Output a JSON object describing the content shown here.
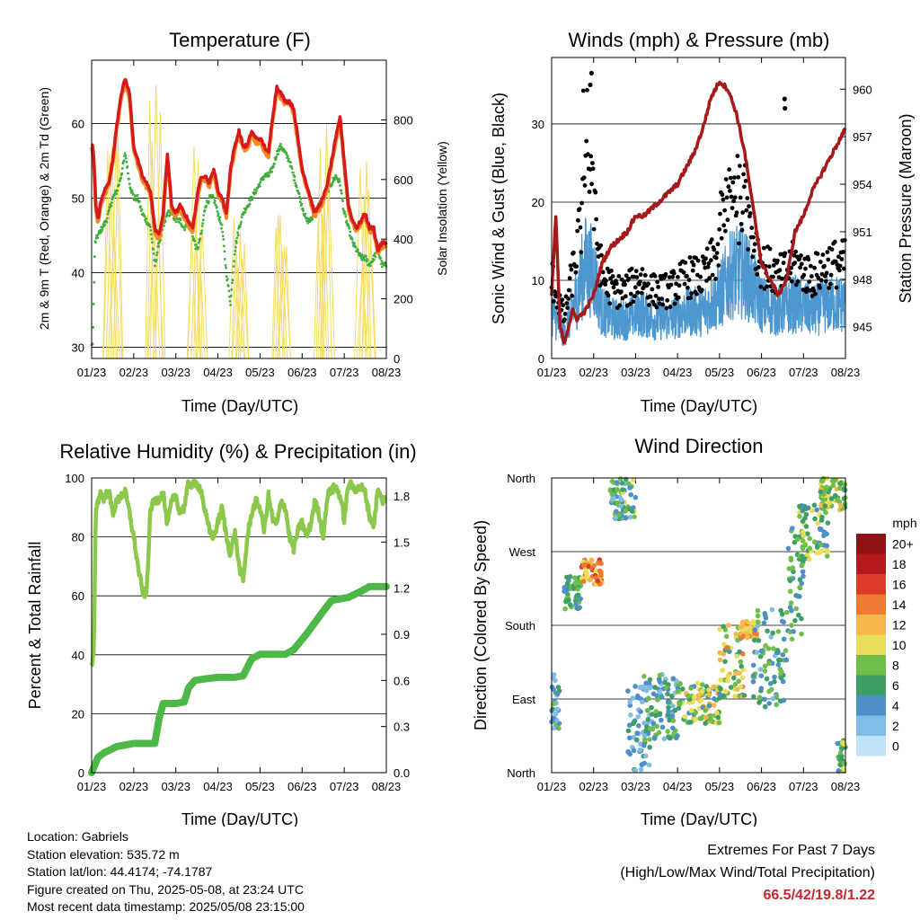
{
  "footer": {
    "location": "Location: Gabriels",
    "elevation": "Station elevation: 535.72 m",
    "latlon": "Station lat/lon: 44.4174; -74.1787",
    "created": "Figure created on Thu, 2025-05-08, at 23:24 UTC",
    "recent": "Most recent data timestamp: 2025/05/08 23:15:00",
    "extremes_title": "Extremes For Past 7 Days",
    "extremes_sub": "(High/Low/Max Wind/Total Precipitation)",
    "extremes_values": "66.5/42/19.8/1.22"
  },
  "colors": {
    "temp2m": "#d7191c",
    "temp9m": "#f08a24",
    "dewpoint": "#3fae3a",
    "solar": "#f6dc60",
    "wind": "#4d97d1",
    "gust": "#000000",
    "pressure": "#a5191b",
    "rh": "#8cc84b",
    "precip": "#4db848",
    "extremes": "#c8262b"
  },
  "chart_data": [
    {
      "type": "line",
      "title": "Temperature (F)",
      "xlabel": "Time (Day/UTC)",
      "ylabel": "2m & 9m T (Red, Orange) & 2m Td (Green)",
      "y2label": "Solar Insolation (Yellow)",
      "x_ticks": [
        "01/23",
        "02/23",
        "03/23",
        "04/23",
        "05/23",
        "06/23",
        "07/23",
        "08/23"
      ],
      "xlim": [
        0,
        7
      ],
      "ylim": [
        28.5,
        68.5
      ],
      "yticks": [
        30,
        40,
        50,
        60
      ],
      "y2lim": [
        0,
        1000
      ],
      "y2ticks": [
        0,
        200,
        400,
        600,
        800
      ],
      "grid": "horizontal",
      "series": [
        {
          "x": [
            0,
            0.05,
            0.1,
            0.15,
            0.2,
            0.3,
            0.4,
            0.5,
            0.6,
            0.7,
            0.8,
            0.9,
            1.0,
            1.1,
            1.2,
            1.3,
            1.4,
            1.5,
            1.6,
            1.7,
            1.8,
            1.9,
            2.0,
            2.1,
            2.2,
            2.3,
            2.4,
            2.5,
            2.6,
            2.7,
            2.8,
            2.9,
            3.0,
            3.1,
            3.2,
            3.3,
            3.4,
            3.5,
            3.6,
            3.7,
            3.8,
            3.9,
            4.0,
            4.1,
            4.2,
            4.3,
            4.4,
            4.5,
            4.6,
            4.7,
            4.8,
            4.9,
            5.0,
            5.1,
            5.2,
            5.3,
            5.4,
            5.5,
            5.6,
            5.7,
            5.8,
            5.9,
            6.0,
            6.1,
            6.2,
            6.3,
            6.4,
            6.5,
            6.6,
            6.7,
            6.8,
            6.9,
            7.0
          ],
          "y": [
            57.5,
            56,
            49,
            47,
            49,
            51,
            52,
            55,
            60,
            64,
            66,
            64,
            57,
            55,
            53,
            52,
            51,
            46,
            45,
            48,
            56,
            49,
            48,
            49,
            48,
            47,
            46,
            50,
            53,
            53,
            52,
            54,
            51,
            50,
            48,
            54,
            57,
            59,
            57,
            57,
            59,
            58,
            58,
            57,
            56,
            61,
            65,
            64,
            63,
            63,
            62,
            58,
            54,
            52,
            50,
            48,
            49,
            50,
            52,
            55,
            58,
            61,
            55,
            49,
            47,
            46,
            47,
            48,
            46,
            46,
            43,
            44,
            44
          ]
        },
        {
          "x": [
            0,
            0.05,
            0.1,
            0.15,
            0.2,
            0.3,
            0.4,
            0.5,
            0.6,
            0.7,
            0.8,
            0.9,
            1.0,
            1.1,
            1.2,
            1.3,
            1.4,
            1.5,
            1.6,
            1.7,
            1.8,
            1.9,
            2.0,
            2.1,
            2.2,
            2.3,
            2.4,
            2.5,
            2.6,
            2.7,
            2.8,
            2.9,
            3.0,
            3.1,
            3.2,
            3.3,
            3.4,
            3.5,
            3.6,
            3.7,
            3.8,
            3.9,
            4.0,
            4.1,
            4.2,
            4.3,
            4.4,
            4.5,
            4.6,
            4.7,
            4.8,
            4.9,
            5.0,
            5.1,
            5.2,
            5.3,
            5.4,
            5.5,
            5.6,
            5.7,
            5.8,
            5.9,
            6.0,
            6.1,
            6.2,
            6.3,
            6.4,
            6.5,
            6.6,
            6.7,
            6.8,
            6.9,
            7.0
          ],
          "y": [
            57,
            55.5,
            48.5,
            46.5,
            48.5,
            50.5,
            51.5,
            54.5,
            59.5,
            63.5,
            65.5,
            63.5,
            56.5,
            54.5,
            52.5,
            51.5,
            50.5,
            45.5,
            44.5,
            47.5,
            55.5,
            48.5,
            47.5,
            48.5,
            47.5,
            46.5,
            45.5,
            49.5,
            52.5,
            52.5,
            51.5,
            53.5,
            50.5,
            49.5,
            47.5,
            53.5,
            56.5,
            58.5,
            56.5,
            56.5,
            58.5,
            57.5,
            57.5,
            56.5,
            55.5,
            60.5,
            64.5,
            63.5,
            62.5,
            62.5,
            61.5,
            57.5,
            53.5,
            51.5,
            49.5,
            47.5,
            48.5,
            49.5,
            51.5,
            54.5,
            57.5,
            60.5,
            54.5,
            48.5,
            46.5,
            45.5,
            46.5,
            47.5,
            45.5,
            45.5,
            42.5,
            43.5,
            43.5
          ]
        },
        {
          "x": [
            0,
            0.03,
            0.08,
            0.15,
            0.25,
            0.35,
            0.5,
            0.6,
            0.7,
            0.8,
            0.9,
            1.0,
            1.1,
            1.2,
            1.3,
            1.4,
            1.5,
            1.6,
            1.7,
            1.8,
            1.9,
            2.0,
            2.1,
            2.2,
            2.3,
            2.4,
            2.5,
            2.6,
            2.7,
            2.8,
            2.9,
            3.0,
            3.1,
            3.2,
            3.3,
            3.4,
            3.5,
            3.6,
            3.7,
            3.8,
            3.9,
            4.0,
            4.1,
            4.2,
            4.3,
            4.4,
            4.5,
            4.6,
            4.7,
            4.8,
            4.9,
            5.0,
            5.1,
            5.2,
            5.3,
            5.4,
            5.5,
            5.6,
            5.7,
            5.8,
            5.9,
            6.0,
            6.1,
            6.2,
            6.3,
            6.4,
            6.5,
            6.6,
            6.7,
            6.8,
            6.9,
            7.0
          ],
          "y": [
            30,
            31,
            44,
            45,
            46,
            47,
            50,
            51,
            53,
            56,
            52,
            50,
            50,
            48,
            47,
            46,
            41,
            44,
            46,
            48,
            48,
            47,
            47,
            46,
            47,
            45,
            43,
            45,
            49,
            50,
            50,
            48,
            46,
            40,
            36,
            43,
            46,
            48,
            49,
            50,
            51,
            52,
            53,
            53,
            54,
            56,
            57,
            56,
            55,
            53,
            51,
            49,
            47,
            47,
            48,
            49,
            50,
            51,
            52,
            53,
            52,
            48,
            46,
            44,
            43,
            42,
            42,
            41,
            42,
            43,
            41,
            41
          ]
        }
      ]
    },
    {
      "type": "scatter",
      "title": "Winds (mph) & Pressure (mb)",
      "xlabel": "Time (Day/UTC)",
      "ylabel": "Sonic Wind & Gust (Blue, Black)",
      "y2label": "Station Pressure (Maroon)",
      "x_ticks": [
        "01/23",
        "02/23",
        "03/23",
        "04/23",
        "05/23",
        "06/23",
        "07/23",
        "08/23"
      ],
      "xlim": [
        0,
        7
      ],
      "ylim": [
        0,
        38.5
      ],
      "yticks": [
        0,
        10,
        20,
        30
      ],
      "y2lim": [
        943,
        962
      ],
      "y2ticks": [
        945,
        948,
        951,
        954,
        957,
        960
      ],
      "grid": "horizontal",
      "pressure": {
        "x": [
          0,
          0.1,
          0.2,
          0.3,
          0.4,
          0.5,
          0.6,
          0.8,
          1.0,
          1.2,
          1.4,
          1.6,
          1.8,
          2.0,
          2.2,
          2.4,
          2.6,
          2.8,
          3.0,
          3.2,
          3.4,
          3.6,
          3.8,
          4.0,
          4.2,
          4.4,
          4.6,
          4.8,
          5.0,
          5.2,
          5.4,
          5.6,
          5.8,
          6.0,
          6.2,
          6.4,
          6.6,
          6.8,
          7.0
        ],
        "y": [
          947,
          952,
          945,
          944,
          945,
          946,
          945.5,
          946,
          947,
          949,
          950,
          950.5,
          951,
          952,
          952,
          952.5,
          953,
          953.5,
          954,
          955,
          956,
          957.5,
          959.5,
          960.5,
          960,
          958.5,
          956,
          952.5,
          949,
          948,
          947,
          948,
          951,
          952,
          953.5,
          954.5,
          955.5,
          956.5,
          957.5
        ]
      },
      "wind_range": [
        0,
        20
      ],
      "gust_max": 36.5
    },
    {
      "type": "line",
      "title": "Relative Humidity (%) & Precipitation (in)",
      "xlabel": "Time (Day/UTC)",
      "ylabel": "Percent & Total Rainfall",
      "x_ticks": [
        "01/23",
        "02/23",
        "03/23",
        "04/23",
        "05/23",
        "06/23",
        "07/23",
        "08/23"
      ],
      "xlim": [
        0,
        7
      ],
      "ylim": [
        0,
        100
      ],
      "yticks": [
        0,
        20,
        40,
        60,
        80,
        100
      ],
      "y2lim": [
        0,
        1.9167
      ],
      "y2ticks": [
        "0.0",
        "0.3",
        "0.6",
        "0.9",
        "1.2",
        "1.5",
        "1.8"
      ],
      "grid": "horizontal",
      "series": [
        {
          "name": "RH",
          "x": [
            0,
            0.05,
            0.1,
            0.15,
            0.2,
            0.3,
            0.4,
            0.5,
            0.6,
            0.7,
            0.8,
            0.9,
            1.0,
            1.1,
            1.2,
            1.3,
            1.4,
            1.5,
            1.6,
            1.7,
            1.8,
            1.9,
            2.0,
            2.1,
            2.2,
            2.3,
            2.4,
            2.5,
            2.6,
            2.7,
            2.8,
            2.9,
            3.0,
            3.1,
            3.2,
            3.3,
            3.4,
            3.5,
            3.6,
            3.7,
            3.8,
            3.9,
            4.0,
            4.1,
            4.2,
            4.3,
            4.4,
            4.5,
            4.6,
            4.7,
            4.8,
            4.9,
            5.0,
            5.1,
            5.2,
            5.3,
            5.4,
            5.5,
            5.6,
            5.7,
            5.8,
            5.9,
            6.0,
            6.1,
            6.2,
            6.3,
            6.4,
            6.5,
            6.6,
            6.7,
            6.8,
            6.9,
            7.0
          ],
          "y": [
            36,
            40,
            90,
            92,
            95,
            93,
            96,
            88,
            92,
            94,
            95,
            88,
            80,
            70,
            62,
            60,
            90,
            92,
            93,
            95,
            84,
            92,
            94,
            88,
            90,
            98,
            98,
            98,
            96,
            88,
            82,
            80,
            85,
            90,
            80,
            74,
            82,
            70,
            65,
            80,
            88,
            92,
            90,
            82,
            94,
            86,
            84,
            92,
            90,
            80,
            76,
            82,
            85,
            80,
            84,
            92,
            88,
            80,
            94,
            96,
            97,
            94,
            86,
            98,
            97,
            96,
            97,
            95,
            87,
            84,
            96,
            92,
            94
          ]
        },
        {
          "name": "Precip",
          "x": [
            0,
            0.15,
            0.3,
            0.45,
            0.6,
            1.0,
            1.4,
            1.5,
            1.6,
            1.7,
            2.0,
            2.2,
            2.3,
            2.45,
            2.7,
            3.0,
            3.4,
            3.6,
            3.8,
            4.0,
            4.3,
            4.6,
            4.8,
            4.95,
            5.1,
            5.5,
            5.7,
            5.9,
            6.1,
            6.4,
            6.6,
            7.0
          ],
          "y": [
            0,
            0.1,
            0.13,
            0.15,
            0.17,
            0.19,
            0.19,
            0.19,
            0.35,
            0.45,
            0.45,
            0.46,
            0.55,
            0.6,
            0.61,
            0.62,
            0.62,
            0.63,
            0.74,
            0.77,
            0.77,
            0.77,
            0.8,
            0.85,
            0.9,
            1.05,
            1.12,
            1.13,
            1.14,
            1.18,
            1.21,
            1.21
          ]
        }
      ]
    },
    {
      "type": "scatter",
      "title": "Wind Direction",
      "xlabel": "Time (Day/UTC)",
      "ylabel": "Direction (Colored By Speed)",
      "x_ticks": [
        "01/23",
        "02/23",
        "03/23",
        "04/23",
        "05/23",
        "06/23",
        "07/23",
        "08/23"
      ],
      "xlim": [
        0,
        7
      ],
      "ylim": [
        0,
        360
      ],
      "y_tick_labels": [
        "North",
        "East",
        "South",
        "West",
        "North"
      ],
      "grid": "horizontal",
      "colorbar": {
        "title": "mph",
        "labels": [
          "0",
          "2",
          "4",
          "6",
          "8",
          "10",
          "12",
          "14",
          "16",
          "18",
          "20+"
        ],
        "colors": [
          "#bfe4f7",
          "#80bde6",
          "#4e8ecb",
          "#3f9e66",
          "#6fbd4a",
          "#e8de5a",
          "#f7b64a",
          "#ef7a32",
          "#dd3a28",
          "#b4191c",
          "#8e1316"
        ]
      },
      "clusters": [
        {
          "x": [
            0,
            0.2
          ],
          "dir": [
            50,
            120
          ],
          "speed": [
            2,
            8
          ]
        },
        {
          "x": [
            0.3,
            0.7
          ],
          "dir": [
            200,
            240
          ],
          "speed": [
            4,
            9
          ]
        },
        {
          "x": [
            0.7,
            1.2
          ],
          "dir": [
            230,
            260
          ],
          "speed": [
            9,
            17
          ]
        },
        {
          "x": [
            1.4,
            2.0
          ],
          "dir": [
            310,
            360
          ],
          "speed": [
            2,
            10
          ]
        },
        {
          "x": [
            1.8,
            2.4
          ],
          "dir": [
            0,
            110
          ],
          "speed": [
            1,
            6
          ]
        },
        {
          "x": [
            2.2,
            3.0
          ],
          "dir": [
            40,
            120
          ],
          "speed": [
            2,
            9
          ]
        },
        {
          "x": [
            3.0,
            4.0
          ],
          "dir": [
            60,
            110
          ],
          "speed": [
            4,
            13
          ]
        },
        {
          "x": [
            4.0,
            4.6
          ],
          "dir": [
            90,
            180
          ],
          "speed": [
            4,
            14
          ]
        },
        {
          "x": [
            4.5,
            4.9
          ],
          "dir": [
            165,
            185
          ],
          "speed": [
            9,
            14
          ]
        },
        {
          "x": [
            4.8,
            5.6
          ],
          "dir": [
            80,
            200
          ],
          "speed": [
            2,
            9
          ]
        },
        {
          "x": [
            5.6,
            6.0
          ],
          "dir": [
            160,
            300
          ],
          "speed": [
            3,
            9
          ]
        },
        {
          "x": [
            5.9,
            6.6
          ],
          "dir": [
            260,
            330
          ],
          "speed": [
            4,
            11
          ]
        },
        {
          "x": [
            6.4,
            7.0
          ],
          "dir": [
            320,
            360
          ],
          "speed": [
            5,
            12
          ]
        },
        {
          "x": [
            6.8,
            7.0
          ],
          "dir": [
            0,
            40
          ],
          "speed": [
            3,
            10
          ]
        }
      ]
    }
  ]
}
